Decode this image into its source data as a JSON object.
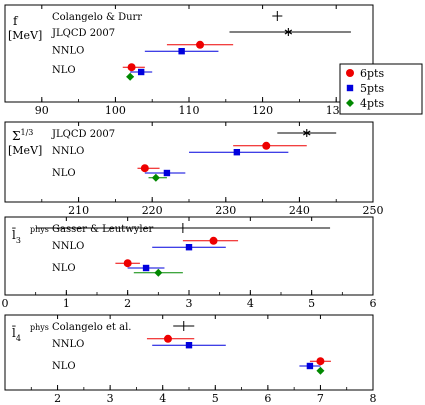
{
  "legend": {
    "items": [
      {
        "label": "6pts",
        "color": "#ee0000",
        "marker": "circle"
      },
      {
        "label": "5pts",
        "color": "#0000dd",
        "marker": "square"
      },
      {
        "label": "4pts",
        "color": "#008800",
        "marker": "diamond"
      }
    ],
    "placement": "right of top panel"
  },
  "chart_data": [
    {
      "type": "scatter",
      "ylabel_lines": [
        "f",
        "[MeV]"
      ],
      "xlim": [
        85,
        135
      ],
      "xticks": [
        90,
        100,
        110,
        120,
        130
      ],
      "row_labels": [
        "Colangelo & Durr",
        "JLQCD 2007",
        "NNLO",
        "NLO"
      ],
      "points": [
        {
          "ref": "Colangelo & Durr",
          "marker": "plus",
          "color": "#000000",
          "x": 122,
          "xerr": [
            122,
            122
          ],
          "row": 0
        },
        {
          "ref": "JLQCD 2007",
          "marker": "star",
          "color": "#000000",
          "x": 123.5,
          "xerr": [
            115.5,
            132
          ],
          "row": 1
        },
        {
          "ref": "NNLO 6pts",
          "marker": "circle",
          "color": "#ee0000",
          "x": 111.5,
          "xerr": [
            107,
            116
          ],
          "row": 1.8
        },
        {
          "ref": "NNLO 5pts",
          "marker": "square",
          "color": "#0000dd",
          "x": 109,
          "xerr": [
            104,
            114
          ],
          "row": 2.2
        },
        {
          "ref": "NLO 6pts",
          "marker": "circle",
          "color": "#ee0000",
          "x": 102.2,
          "xerr": [
            101,
            104
          ],
          "row": 3.2
        },
        {
          "ref": "NLO 5pts",
          "marker": "square",
          "color": "#0000dd",
          "x": 103.5,
          "xerr": [
            102,
            105
          ],
          "row": 3.5
        },
        {
          "ref": "NLO 4pts",
          "marker": "diamond",
          "color": "#008800",
          "x": 102,
          "xerr": [
            101.5,
            102.5
          ],
          "row": 3.8
        }
      ]
    },
    {
      "type": "scatter",
      "ylabel_lines": [
        "Σ^1/3",
        "[MeV]"
      ],
      "xlim": [
        200,
        250
      ],
      "xticks": [
        210,
        220,
        230,
        240,
        250
      ],
      "row_labels": [
        "JLQCD 2007",
        "NNLO",
        "NLO"
      ],
      "points": [
        {
          "ref": "JLQCD 2007",
          "marker": "star",
          "color": "#000000",
          "x": 241,
          "xerr": [
            237,
            245
          ],
          "row": 0
        },
        {
          "ref": "NNLO 6pts",
          "marker": "circle",
          "color": "#ee0000",
          "x": 235.5,
          "xerr": [
            231,
            241
          ],
          "row": 0.8
        },
        {
          "ref": "NNLO 5pts",
          "marker": "square",
          "color": "#0000dd",
          "x": 231.5,
          "xerr": [
            225,
            238.5
          ],
          "row": 1.2
        },
        {
          "ref": "NLO 6pts",
          "marker": "circle",
          "color": "#ee0000",
          "x": 219,
          "xerr": [
            218,
            221
          ],
          "row": 2.2
        },
        {
          "ref": "NLO 5pts",
          "marker": "square",
          "color": "#0000dd",
          "x": 222,
          "xerr": [
            219,
            224.5
          ],
          "row": 2.5
        },
        {
          "ref": "NLO 4pts",
          "marker": "diamond",
          "color": "#008800",
          "x": 220.5,
          "xerr": [
            219.5,
            222
          ],
          "row": 2.8
        }
      ]
    },
    {
      "type": "scatter",
      "ylabel_lines": [
        "l̄3",
        "phys"
      ],
      "xlim": [
        0,
        6
      ],
      "xticks": [
        0,
        1,
        2,
        3,
        4,
        5,
        6
      ],
      "row_labels": [
        "Gasser & Leutwyler",
        "NNLO",
        "NLO"
      ],
      "points": [
        {
          "ref": "Gasser & Leutwyler",
          "marker": "plus",
          "color": "#000000",
          "x": 2.9,
          "xerr": [
            0.5,
            5.3
          ],
          "row": 0
        },
        {
          "ref": "NNLO 6pts",
          "marker": "circle",
          "color": "#ee0000",
          "x": 3.4,
          "xerr": [
            2.9,
            3.8
          ],
          "row": 0.8
        },
        {
          "ref": "NNLO 5pts",
          "marker": "square",
          "color": "#0000dd",
          "x": 3.0,
          "xerr": [
            2.4,
            3.6
          ],
          "row": 1.2
        },
        {
          "ref": "NLO 6pts",
          "marker": "circle",
          "color": "#ee0000",
          "x": 2.0,
          "xerr": [
            1.8,
            2.2
          ],
          "row": 2.2
        },
        {
          "ref": "NLO 5pts",
          "marker": "square",
          "color": "#0000dd",
          "x": 2.3,
          "xerr": [
            2.0,
            2.6
          ],
          "row": 2.5
        },
        {
          "ref": "NLO 4pts",
          "marker": "diamond",
          "color": "#008800",
          "x": 2.5,
          "xerr": [
            2.1,
            2.9
          ],
          "row": 2.8
        }
      ]
    },
    {
      "type": "scatter",
      "ylabel_lines": [
        "l̄4",
        "phys"
      ],
      "xlim": [
        1,
        8
      ],
      "xticks": [
        2,
        3,
        4,
        5,
        6,
        7,
        8
      ],
      "row_labels": [
        "Colangelo et al.",
        "NNLO",
        "NLO"
      ],
      "points": [
        {
          "ref": "Colangelo et al.",
          "marker": "plus",
          "color": "#000000",
          "x": 4.4,
          "xerr": [
            4.2,
            4.6
          ],
          "row": 0
        },
        {
          "ref": "NNLO 6pts",
          "marker": "circle",
          "color": "#ee0000",
          "x": 4.1,
          "xerr": [
            3.7,
            4.6
          ],
          "row": 0.8
        },
        {
          "ref": "NNLO 5pts",
          "marker": "square",
          "color": "#0000dd",
          "x": 4.5,
          "xerr": [
            3.8,
            5.2
          ],
          "row": 1.2
        },
        {
          "ref": "NLO 6pts",
          "marker": "circle",
          "color": "#ee0000",
          "x": 7.0,
          "xerr": [
            6.8,
            7.2
          ],
          "row": 2.2
        },
        {
          "ref": "NLO 5pts",
          "marker": "square",
          "color": "#0000dd",
          "x": 6.8,
          "xerr": [
            6.6,
            7.0
          ],
          "row": 2.5
        },
        {
          "ref": "NLO 4pts",
          "marker": "diamond",
          "color": "#008800",
          "x": 7.0,
          "xerr": [
            6.95,
            7.05
          ],
          "row": 2.8
        }
      ]
    }
  ]
}
